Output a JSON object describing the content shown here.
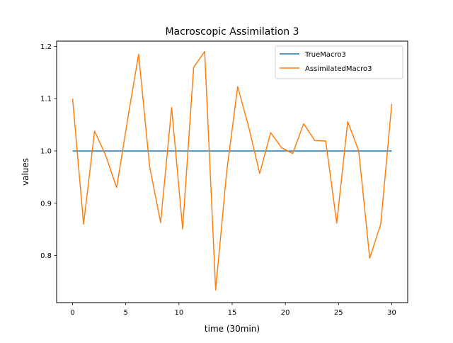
{
  "chart_data": {
    "type": "line",
    "title": "Macroscopic Assimilation 3",
    "xlabel": "time (30min)",
    "ylabel": "values",
    "xlim": [
      -1.5,
      31.5
    ],
    "ylim": [
      0.71,
      1.21
    ],
    "xticks": [
      0,
      5,
      10,
      15,
      20,
      25,
      30
    ],
    "xtick_labels": [
      "0",
      "5",
      "10",
      "15",
      "20",
      "25",
      "30"
    ],
    "yticks": [
      0.8,
      0.9,
      1.0,
      1.1,
      1.2
    ],
    "ytick_labels": [
      "0.8",
      "0.9",
      "1.0",
      "1.1",
      "1.2"
    ],
    "grid": false,
    "legend_position": "upper right",
    "series": [
      {
        "name": "TrueMacro3",
        "color": "#1f77b4",
        "x": [
          0,
          30
        ],
        "y": [
          1.0,
          1.0
        ]
      },
      {
        "name": "AssimilatedMacro3",
        "color": "#ff7f0e",
        "x": [
          0,
          1.034,
          2.069,
          3.103,
          4.138,
          5.172,
          6.207,
          7.241,
          8.276,
          9.31,
          10.345,
          11.379,
          12.414,
          13.448,
          14.483,
          15.517,
          16.552,
          17.586,
          18.621,
          19.655,
          20.69,
          21.724,
          22.759,
          23.793,
          24.828,
          25.862,
          26.897,
          27.931,
          28.966,
          30
        ],
        "y": [
          1.1,
          0.86,
          1.038,
          0.992,
          0.93,
          1.06,
          1.185,
          0.97,
          0.863,
          1.083,
          0.851,
          1.16,
          1.19,
          0.734,
          0.96,
          1.123,
          1.046,
          0.957,
          1.035,
          1.006,
          0.995,
          1.052,
          1.02,
          1.019,
          0.862,
          1.056,
          1.0,
          0.795,
          0.86,
          1.09
        ]
      }
    ]
  }
}
